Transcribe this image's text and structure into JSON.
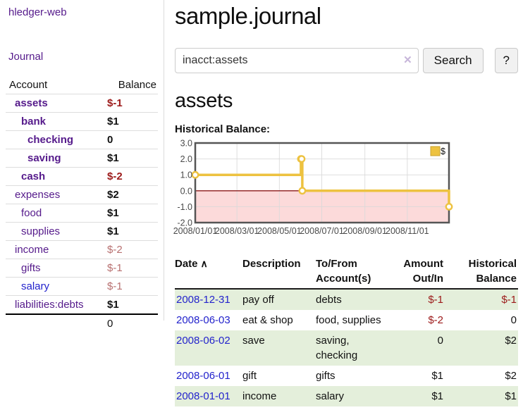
{
  "app": {
    "brand": "hledger-web",
    "nav_journal": "Journal"
  },
  "sidebar": {
    "header": {
      "account": "Account",
      "balance": "Balance"
    },
    "accounts": [
      {
        "name": "assets",
        "balance": "$-1",
        "depth": 1,
        "bold": true,
        "balance_class": "neg",
        "balance_bold": true
      },
      {
        "name": "bank",
        "balance": "$1",
        "depth": 2,
        "bold": true,
        "balance_class": "pos",
        "balance_bold": true
      },
      {
        "name": "checking",
        "balance": "0",
        "depth": 3,
        "bold": true,
        "balance_class": "pos",
        "balance_bold": true
      },
      {
        "name": "saving",
        "balance": "$1",
        "depth": 3,
        "bold": true,
        "balance_class": "pos",
        "balance_bold": true
      },
      {
        "name": "cash",
        "balance": "$-2",
        "depth": 2,
        "bold": true,
        "balance_class": "neg",
        "balance_bold": true
      },
      {
        "name": "expenses",
        "balance": "$2",
        "depth": 1,
        "bold": false,
        "balance_class": "pos",
        "balance_bold": true
      },
      {
        "name": "food",
        "balance": "$1",
        "depth": 2,
        "bold": false,
        "balance_class": "pos",
        "balance_bold": true
      },
      {
        "name": "supplies",
        "balance": "$1",
        "depth": 2,
        "bold": false,
        "balance_class": "pos",
        "balance_bold": true
      },
      {
        "name": "income",
        "balance": "$-2",
        "depth": 1,
        "bold": false,
        "balance_class": "neg-light",
        "balance_bold": false
      },
      {
        "name": "gifts",
        "balance": "$-1",
        "depth": 2,
        "bold": false,
        "balance_class": "neg-light",
        "balance_bold": false
      },
      {
        "name": "salary",
        "balance": "$-1",
        "depth": 2,
        "bold": false,
        "balance_class": "neg-light",
        "balance_bold": false,
        "link_color": "blue"
      },
      {
        "name": "liabilities:debts",
        "balance": "$1",
        "depth": 1,
        "bold": false,
        "balance_class": "pos",
        "balance_bold": true
      }
    ],
    "total": "0"
  },
  "header": {
    "title": "sample.journal"
  },
  "search": {
    "value": "inacct:assets",
    "clear_label": "✕",
    "button": "Search",
    "help_button": "?"
  },
  "account_page": {
    "heading": "assets",
    "chart_label": "Historical Balance:"
  },
  "chart_data": {
    "type": "line",
    "title": "Historical Balance:",
    "step": true,
    "series": [
      {
        "name": "$",
        "color": "#edc240",
        "points": [
          [
            "2008-01-01",
            1
          ],
          [
            "2008-06-01",
            2
          ],
          [
            "2008-06-02",
            2
          ],
          [
            "2008-06-03",
            0
          ],
          [
            "2008-12-31",
            -1
          ]
        ]
      }
    ],
    "xrange": [
      "2008-01-01",
      "2008-12-31"
    ],
    "ylim": [
      -2,
      3
    ],
    "yticks": [
      "3.0",
      "2.0",
      "1.0",
      "0.0",
      "-1.0",
      "-2.0"
    ],
    "ytick_values": [
      3,
      2,
      1,
      0,
      -1,
      -2
    ],
    "xticks": [
      "2008/01/01",
      "2008/03/01",
      "2008/05/01",
      "2008/07/01",
      "2008/09/01",
      "2008/11/01"
    ],
    "xtick_dates": [
      "2008-01-01",
      "2008-03-01",
      "2008-05-01",
      "2008-07-01",
      "2008-09-01",
      "2008-11-01"
    ],
    "legend": [
      {
        "label": "$",
        "color": "#edc240"
      }
    ],
    "legend_position": "top-right",
    "grid": true,
    "negative_fill": "#fcdada",
    "zero_line_color": "#8b1a1a",
    "border_color": "#555555",
    "grid_color": "#d9d9d9",
    "tick_text_color": "#4a4a4a"
  },
  "register": {
    "columns": [
      {
        "label": "Date"
      },
      {
        "label": "Description"
      },
      {
        "label": "To/From Account(s)"
      },
      {
        "label": "Amount Out/In"
      },
      {
        "label": "Historical Balance"
      }
    ],
    "sort_icon": "∧",
    "rows": [
      {
        "date": "2008-12-31",
        "description": "pay off",
        "accounts": "debts",
        "amount": "$-1",
        "amount_negative": true,
        "balance": "$-1",
        "balance_negative": true
      },
      {
        "date": "2008-06-03",
        "description": "eat & shop",
        "accounts": "food, supplies",
        "amount": "$-2",
        "amount_negative": true,
        "balance": "0",
        "balance_negative": false
      },
      {
        "date": "2008-06-02",
        "description": "save",
        "accounts": "saving, checking",
        "amount": "0",
        "amount_negative": false,
        "balance": "$2",
        "balance_negative": false
      },
      {
        "date": "2008-06-01",
        "description": "gift",
        "accounts": "gifts",
        "amount": "$1",
        "amount_negative": false,
        "balance": "$2",
        "balance_negative": false
      },
      {
        "date": "2008-01-01",
        "description": "income",
        "accounts": "salary",
        "amount": "$1",
        "amount_negative": false,
        "balance": "$1",
        "balance_negative": false
      }
    ]
  },
  "colors": {
    "link_purple": "#551a8b",
    "link_blue": "#2323cc",
    "negative_dark": "#9c1a1a",
    "negative_light": "#b87070",
    "row_stripe_green": "#e4efdb",
    "series_gold": "#edc240",
    "negative_region_pink": "#fcdada",
    "zero_line_red": "#8b1a1a"
  }
}
